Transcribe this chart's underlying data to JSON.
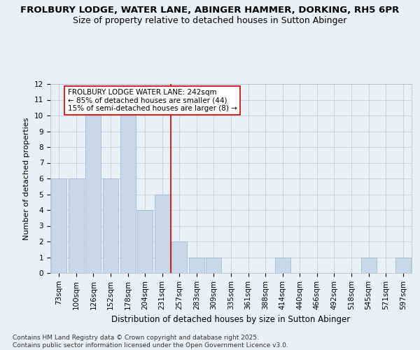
{
  "title1": "FROLBURY LODGE, WATER LANE, ABINGER HAMMER, DORKING, RH5 6PR",
  "title2": "Size of property relative to detached houses in Sutton Abinger",
  "xlabel": "Distribution of detached houses by size in Sutton Abinger",
  "ylabel": "Number of detached properties",
  "categories": [
    "73sqm",
    "100sqm",
    "126sqm",
    "152sqm",
    "178sqm",
    "204sqm",
    "231sqm",
    "257sqm",
    "283sqm",
    "309sqm",
    "335sqm",
    "361sqm",
    "388sqm",
    "414sqm",
    "440sqm",
    "466sqm",
    "492sqm",
    "518sqm",
    "545sqm",
    "571sqm",
    "597sqm"
  ],
  "values": [
    6,
    6,
    10,
    6,
    10,
    4,
    5,
    2,
    1,
    1,
    0,
    0,
    0,
    1,
    0,
    0,
    0,
    0,
    1,
    0,
    1
  ],
  "bar_color": "#c8d8e8",
  "bar_edge_color": "#9ab4cc",
  "grid_color": "#c8d4e4",
  "background_color": "#e8f0f8",
  "red_line_color": "#cc0000",
  "annotation_text": "FROLBURY LODGE WATER LANE: 242sqm\n← 85% of detached houses are smaller (44)\n15% of semi-detached houses are larger (8) →",
  "annotation_box_color": "#ffffff",
  "annotation_box_edge": "#cc0000",
  "ylim": [
    0,
    12
  ],
  "yticks": [
    0,
    1,
    2,
    3,
    4,
    5,
    6,
    7,
    8,
    9,
    10,
    11,
    12
  ],
  "footnote": "Contains HM Land Registry data © Crown copyright and database right 2025.\nContains public sector information licensed under the Open Government Licence v3.0.",
  "title1_fontsize": 9.5,
  "title2_fontsize": 9,
  "xlabel_fontsize": 8.5,
  "ylabel_fontsize": 8,
  "tick_fontsize": 7.5,
  "annotation_fontsize": 7.5,
  "footnote_fontsize": 6.5
}
